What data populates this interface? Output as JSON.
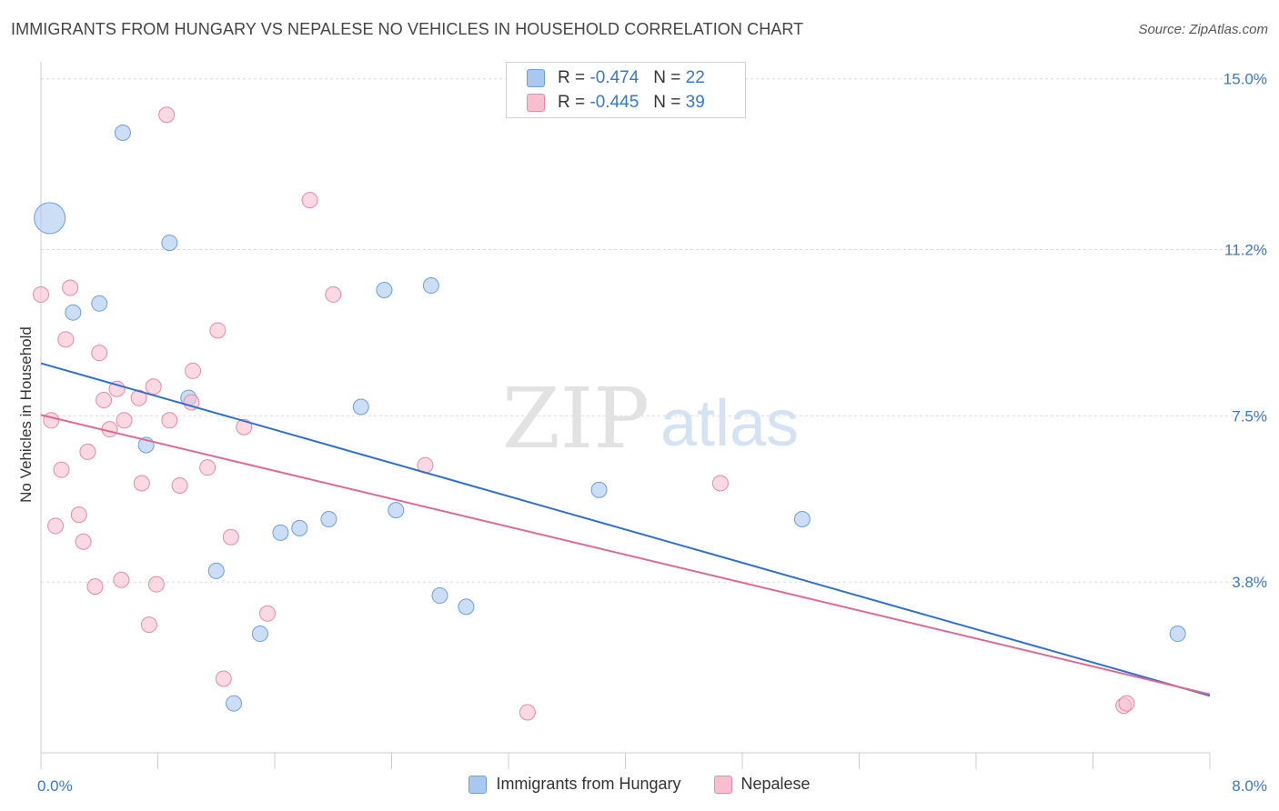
{
  "title": "IMMIGRANTS FROM HUNGARY VS NEPALESE NO VEHICLES IN HOUSEHOLD CORRELATION CHART",
  "source": "Source: ZipAtlas.com",
  "watermark": {
    "zip": "ZIP",
    "atlas": "atlas"
  },
  "legend_top": [
    {
      "r_label": "R =",
      "r_value": "-0.474",
      "n_label": "N =",
      "n_value": "22",
      "color": "#a8c8f0",
      "border": "#6b9fde"
    },
    {
      "r_label": "R =",
      "r_value": "-0.445",
      "n_label": "N =",
      "n_value": "39",
      "color": "#f7bfd0",
      "border": "#e68aa8"
    }
  ],
  "chart_data": {
    "type": "scatter",
    "title": "IMMIGRANTS FROM HUNGARY VS NEPALESE NO VEHICLES IN HOUSEHOLD CORRELATION CHART",
    "xlabel": "",
    "ylabel": "No Vehicles in Household",
    "xlim": [
      0,
      8
    ],
    "ylim": [
      0,
      15.5
    ],
    "x_tick_labels": [
      {
        "value": 0,
        "label": "0.0%"
      },
      {
        "value": 8,
        "label": "8.0%"
      }
    ],
    "y_tick_labels": [
      {
        "value": 3.8,
        "label": "3.8%"
      },
      {
        "value": 7.5,
        "label": "7.5%"
      },
      {
        "value": 11.2,
        "label": "11.2%"
      },
      {
        "value": 15.0,
        "label": "15.0%"
      }
    ],
    "grid": true,
    "legend_position": "top-center",
    "series": [
      {
        "name": "Immigrants from Hungary",
        "color": "#a8c8f0",
        "edge": "#6b9fde",
        "line_color": "#2f6fcf",
        "trend": {
          "x0": 0.0,
          "y0": 8.67,
          "x1": 8.0,
          "y1": 1.27
        },
        "points": [
          {
            "x": 0.06,
            "y": 11.9,
            "size": "large"
          },
          {
            "x": 0.56,
            "y": 13.8
          },
          {
            "x": 0.88,
            "y": 11.35
          },
          {
            "x": 0.22,
            "y": 9.8
          },
          {
            "x": 0.4,
            "y": 10.0
          },
          {
            "x": 0.72,
            "y": 6.85
          },
          {
            "x": 1.01,
            "y": 7.9
          },
          {
            "x": 1.2,
            "y": 4.05
          },
          {
            "x": 1.5,
            "y": 2.65
          },
          {
            "x": 1.64,
            "y": 4.9
          },
          {
            "x": 1.77,
            "y": 5.0
          },
          {
            "x": 1.97,
            "y": 5.2
          },
          {
            "x": 2.19,
            "y": 7.7
          },
          {
            "x": 2.35,
            "y": 10.3
          },
          {
            "x": 2.43,
            "y": 5.4
          },
          {
            "x": 2.67,
            "y": 10.4
          },
          {
            "x": 2.73,
            "y": 3.5
          },
          {
            "x": 2.91,
            "y": 3.25
          },
          {
            "x": 3.82,
            "y": 5.85
          },
          {
            "x": 5.21,
            "y": 5.2
          },
          {
            "x": 7.78,
            "y": 2.65
          },
          {
            "x": 1.32,
            "y": 1.1
          }
        ]
      },
      {
        "name": "Nepalese",
        "color": "#f7bfd0",
        "edge": "#e68aa8",
        "line_color": "#e06890",
        "trend": {
          "x0": 0.0,
          "y0": 7.52,
          "x1": 8.0,
          "y1": 1.3
        },
        "points": [
          {
            "x": 0.0,
            "y": 10.2
          },
          {
            "x": 0.2,
            "y": 10.35
          },
          {
            "x": 0.17,
            "y": 9.2
          },
          {
            "x": 0.4,
            "y": 8.9
          },
          {
            "x": 0.07,
            "y": 7.4
          },
          {
            "x": 0.43,
            "y": 7.85
          },
          {
            "x": 0.52,
            "y": 8.1
          },
          {
            "x": 0.67,
            "y": 7.9
          },
          {
            "x": 0.77,
            "y": 8.15
          },
          {
            "x": 0.47,
            "y": 7.2
          },
          {
            "x": 0.57,
            "y": 7.4
          },
          {
            "x": 0.88,
            "y": 7.4
          },
          {
            "x": 1.04,
            "y": 8.5
          },
          {
            "x": 1.03,
            "y": 7.8
          },
          {
            "x": 1.21,
            "y": 9.4
          },
          {
            "x": 1.39,
            "y": 7.25
          },
          {
            "x": 0.32,
            "y": 6.7
          },
          {
            "x": 0.14,
            "y": 6.3
          },
          {
            "x": 0.69,
            "y": 6.0
          },
          {
            "x": 0.95,
            "y": 5.95
          },
          {
            "x": 1.14,
            "y": 6.35
          },
          {
            "x": 0.26,
            "y": 5.3
          },
          {
            "x": 0.1,
            "y": 5.05
          },
          {
            "x": 0.29,
            "y": 4.7
          },
          {
            "x": 1.3,
            "y": 4.8
          },
          {
            "x": 0.37,
            "y": 3.7
          },
          {
            "x": 0.55,
            "y": 3.85
          },
          {
            "x": 0.79,
            "y": 3.75
          },
          {
            "x": 0.74,
            "y": 2.85
          },
          {
            "x": 1.55,
            "y": 3.1
          },
          {
            "x": 1.25,
            "y": 1.65
          },
          {
            "x": 1.84,
            "y": 12.3
          },
          {
            "x": 2.0,
            "y": 10.2
          },
          {
            "x": 0.86,
            "y": 14.2
          },
          {
            "x": 2.63,
            "y": 6.4
          },
          {
            "x": 3.33,
            "y": 0.9
          },
          {
            "x": 4.65,
            "y": 6.0
          },
          {
            "x": 7.41,
            "y": 1.05
          },
          {
            "x": 7.43,
            "y": 1.1
          }
        ]
      }
    ]
  }
}
